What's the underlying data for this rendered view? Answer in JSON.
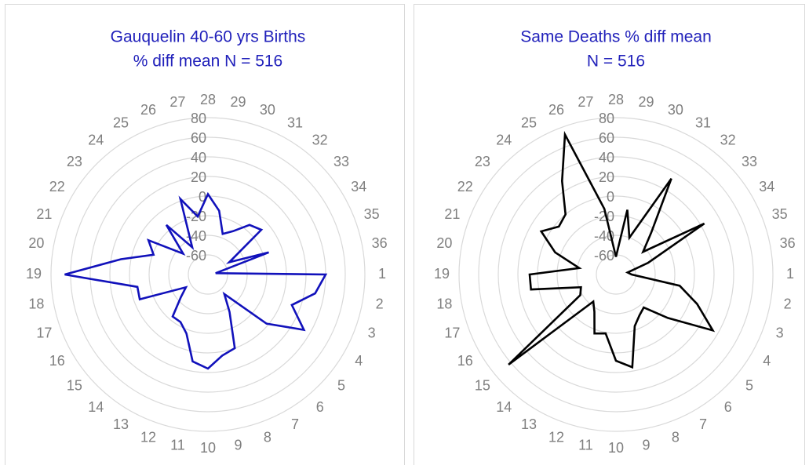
{
  "chart_data": [
    {
      "type": "radar",
      "title": [
        "Gauquelin 40-60 yrs Births",
        "% diff mean N = 516"
      ],
      "title_color": "#2222bb",
      "categories": [
        "28",
        "29",
        "30",
        "31",
        "32",
        "33",
        "34",
        "35",
        "36",
        "1",
        "2",
        "3",
        "4",
        "5",
        "6",
        "7",
        "8",
        "9",
        "10",
        "11",
        "12",
        "13",
        "14",
        "15",
        "16",
        "17",
        "18",
        "19",
        "20",
        "21",
        "22",
        "23",
        "24",
        "25",
        "26",
        "27"
      ],
      "values": [
        2,
        -14,
        -36,
        -29,
        -14,
        -9,
        -55,
        -14,
        -72,
        40,
        31,
        11,
        33,
        -2,
        -54,
        -36,
        0,
        4,
        16,
        10,
        -16,
        -24,
        -24,
        -44,
        -54,
        -6,
        -7,
        66,
        10,
        -21,
        -10,
        -47,
        -14,
        -48,
        2,
        -20
      ],
      "color": "#1111bb",
      "ylim": [
        -80,
        80
      ],
      "yticks": [
        -60,
        -40,
        -20,
        0,
        20,
        40,
        60,
        80
      ],
      "grid": true
    },
    {
      "type": "radar",
      "title": [
        "Same Deaths % diff mean",
        "N = 516"
      ],
      "title_color": "#2222bb",
      "categories": [
        "28",
        "29",
        "30",
        "31",
        "32",
        "33",
        "34",
        "35",
        "36",
        "1",
        "2",
        "3",
        "4",
        "5",
        "6",
        "7",
        "8",
        "9",
        "10",
        "11",
        "12",
        "13",
        "14",
        "15",
        "16",
        "17",
        "18",
        "19",
        "20",
        "21",
        "22",
        "23",
        "24",
        "25",
        "26",
        "27"
      ],
      "values": [
        -62,
        -13,
        -40,
        33,
        -24,
        -44,
        24,
        -45,
        -68,
        -64,
        -14,
        8,
        34,
        -11,
        -36,
        -32,
        -24,
        16,
        8,
        -19,
        -16,
        -36,
        -44,
        63,
        -38,
        -42,
        8,
        8,
        -42,
        -14,
        8,
        -4,
        0,
        30,
        72,
        -12
      ],
      "color": "#000000",
      "ylim": [
        -80,
        80
      ],
      "yticks": [
        -60,
        -40,
        -20,
        0,
        20,
        40,
        60,
        80
      ],
      "grid": true
    }
  ]
}
